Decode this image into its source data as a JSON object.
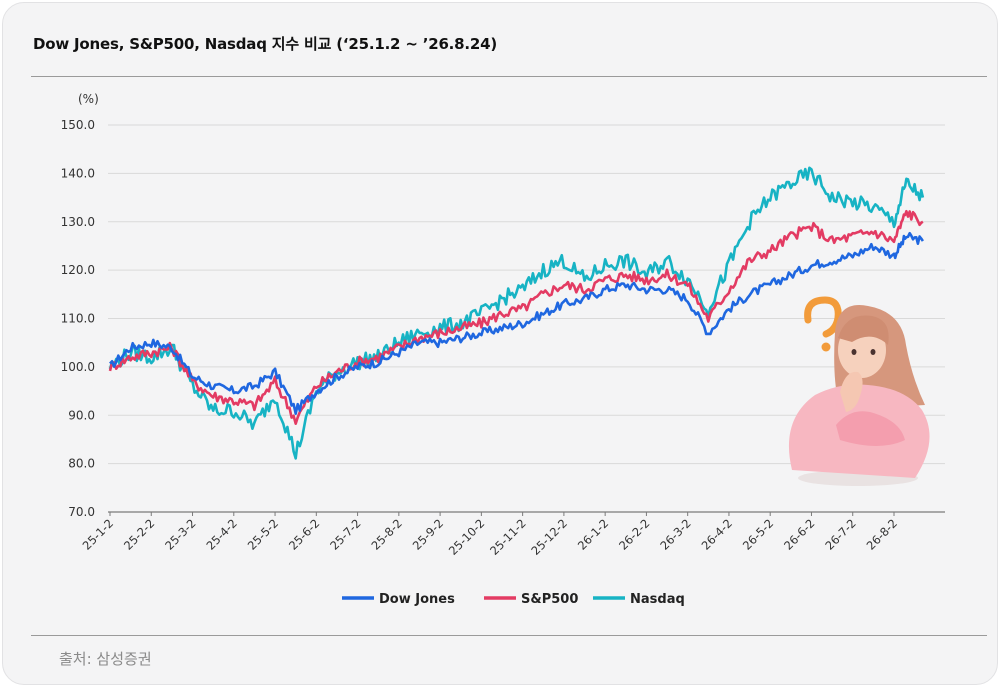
{
  "title": "Dow Jones,  S&P500, Nasdaq 지수 비교 (‘25.1.2 ~ ’26.8.24)",
  "source": "출처: 삼성증권",
  "colors": {
    "dow": "#1f67e0",
    "sp": "#e33b63",
    "nasdaq": "#17b3c4"
  },
  "illustration": "thinking-woman-icon",
  "chart_data": {
    "type": "line",
    "ylabel": "(%)",
    "ylim": [
      70,
      150
    ],
    "yticks": [
      "150.0",
      "140.0",
      "130.0",
      "120.0",
      "110.0",
      "100.0",
      "90.0",
      "80.0",
      "70.0"
    ],
    "xtick_labels": [
      "25-1-2",
      "25-2-2",
      "25-3-2",
      "25-4-2",
      "25-5-2",
      "25-6-2",
      "25-7-2",
      "25-8-2",
      "25-9-2",
      "25-10-2",
      "25-11-2",
      "25-12-2",
      "26-1-2",
      "26-2-2",
      "26-3-2",
      "26-4-2",
      "26-5-2",
      "26-6-2",
      "26-7-2",
      "26-8-2"
    ],
    "x": [
      0,
      0.5,
      1,
      1.5,
      2,
      2.5,
      3,
      3.5,
      4,
      4.5,
      5,
      5.5,
      6,
      6.5,
      7,
      7.5,
      8,
      8.5,
      9,
      9.5,
      10,
      10.5,
      11,
      11.5,
      12,
      12.5,
      13,
      13.5,
      14,
      14.5,
      15,
      15.5,
      16,
      16.5,
      17,
      17.5,
      18,
      18.5,
      19,
      19.3,
      19.7
    ],
    "series": [
      {
        "name": "Dow Jones",
        "color": "#1f67e0",
        "values": [
          100,
          104,
          105,
          104,
          98,
          96,
          95,
          96,
          99,
          91,
          95,
          98,
          100,
          101,
          103,
          105,
          105,
          106,
          107,
          108,
          109,
          111,
          113,
          114,
          116,
          117,
          116,
          116,
          114,
          107,
          112,
          115,
          117,
          119,
          121,
          122,
          123,
          125,
          123,
          127,
          126
        ]
      },
      {
        "name": "S&P500",
        "color": "#e33b63",
        "values": [
          100,
          102,
          103,
          104,
          97,
          94,
          93,
          92,
          97,
          89,
          96,
          99,
          101,
          102,
          104,
          106,
          107,
          108,
          109,
          111,
          112,
          115,
          117,
          116,
          118,
          119,
          118,
          119,
          117,
          110,
          116,
          122,
          124,
          127,
          129,
          126,
          127,
          128,
          126,
          132,
          130
        ]
      },
      {
        "name": "Nasdaq",
        "color": "#17b3c4",
        "values": [
          100,
          103,
          102,
          104,
          96,
          91,
          91,
          88,
          94,
          82,
          95,
          99,
          101,
          102,
          105,
          107,
          108,
          109,
          111,
          114,
          116,
          120,
          122,
          118,
          121,
          122,
          119,
          122,
          118,
          112,
          121,
          130,
          135,
          138,
          140,
          135,
          134,
          133,
          130,
          138,
          135
        ]
      }
    ]
  }
}
